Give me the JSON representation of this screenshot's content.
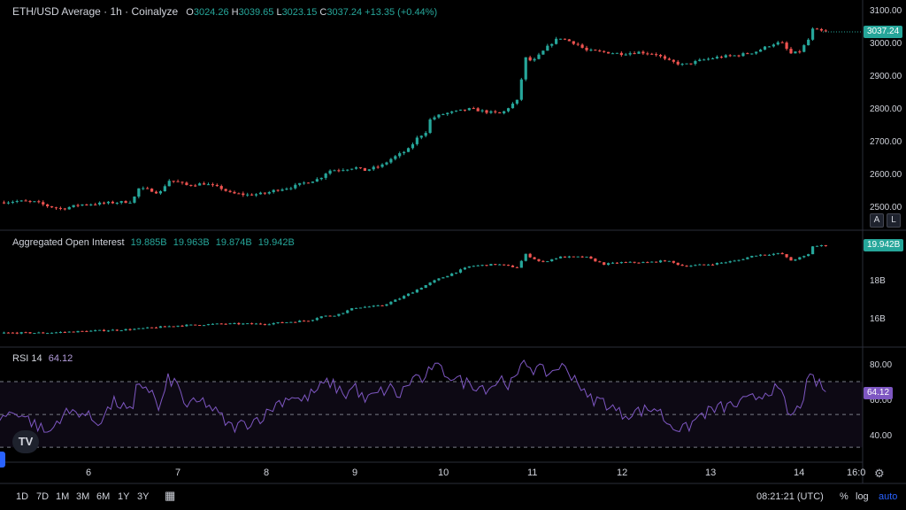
{
  "header": {
    "title": "ETH/USD Average · 1h · Coinalyze",
    "open_key": "O",
    "open": "3024.26",
    "high_key": "H",
    "high": "3039.65",
    "low_key": "L",
    "low": "3023.15",
    "close_key": "C",
    "close": "3037.24",
    "change": "+13.35 (+0.44%)"
  },
  "oi_legend": {
    "title": "Aggregated Open Interest",
    "values": [
      "19.885B",
      "19.963B",
      "19.874B",
      "19.942B"
    ]
  },
  "rsi_legend": {
    "title": "RSI 14",
    "value": "64.12"
  },
  "price_axis": {
    "ticks": [
      "3100.00",
      "3000.00",
      "2900.00",
      "2800.00",
      "2700.00",
      "2600.00",
      "2500.00"
    ],
    "current": "3037.24"
  },
  "oi_axis": {
    "ticks": [
      "18B",
      "16B"
    ],
    "current": "19.942B"
  },
  "rsi_axis": {
    "ticks": [
      "80.00",
      "60.00",
      "40.00"
    ],
    "current": "64.12"
  },
  "time_axis": {
    "ticks": [
      "6",
      "7",
      "8",
      "9",
      "10",
      "11",
      "12",
      "13",
      "14",
      "16:0"
    ]
  },
  "buttons": {
    "auto_scale_a": "A",
    "log_l": "L"
  },
  "timeframes": [
    "1D",
    "7D",
    "1M",
    "3M",
    "6M",
    "1Y",
    "3Y"
  ],
  "clock": "08:21:21 (UTC)",
  "tools": {
    "percent": "%",
    "log": "log",
    "auto": "auto"
  },
  "logo_text": "TV",
  "colors": {
    "up": "#26a69a",
    "down": "#ef5350",
    "rsi": "#7e57c2",
    "accent": "#2962ff"
  },
  "chart_data": [
    {
      "type": "candlestick",
      "series": [
        {
          "name": "ETH/USD Average · 1h · Coinalyze"
        }
      ],
      "ylim": [
        2470,
        3110
      ],
      "xlabel": "",
      "ylabel": "",
      "x_ticks": [
        "6",
        "7",
        "8",
        "9",
        "10",
        "11",
        "12",
        "13",
        "14",
        "16:0"
      ],
      "close_path": [
        [
          5.0,
          2512
        ],
        [
          5.2,
          2516
        ],
        [
          5.4,
          2513
        ],
        [
          5.55,
          2500
        ],
        [
          5.7,
          2492
        ],
        [
          5.9,
          2505
        ],
        [
          6.1,
          2508
        ],
        [
          6.3,
          2512
        ],
        [
          6.5,
          2515
        ],
        [
          6.55,
          2555
        ],
        [
          6.7,
          2550
        ],
        [
          6.8,
          2540
        ],
        [
          6.9,
          2580
        ],
        [
          7.0,
          2575
        ],
        [
          7.1,
          2565
        ],
        [
          7.3,
          2570
        ],
        [
          7.5,
          2555
        ],
        [
          7.6,
          2540
        ],
        [
          7.8,
          2535
        ],
        [
          8.0,
          2540
        ],
        [
          8.1,
          2550
        ],
        [
          8.3,
          2560
        ],
        [
          8.4,
          2570
        ],
        [
          8.6,
          2585
        ],
        [
          8.7,
          2610
        ],
        [
          8.9,
          2615
        ],
        [
          9.0,
          2620
        ],
        [
          9.1,
          2610
        ],
        [
          9.3,
          2625
        ],
        [
          9.4,
          2645
        ],
        [
          9.5,
          2660
        ],
        [
          9.6,
          2675
        ],
        [
          9.7,
          2710
        ],
        [
          9.8,
          2730
        ],
        [
          9.85,
          2770
        ],
        [
          10.0,
          2785
        ],
        [
          10.2,
          2795
        ],
        [
          10.3,
          2800
        ],
        [
          10.5,
          2790
        ],
        [
          10.65,
          2785
        ],
        [
          10.75,
          2810
        ],
        [
          10.85,
          2830
        ],
        [
          10.9,
          2960
        ],
        [
          11.0,
          2945
        ],
        [
          11.2,
          3000
        ],
        [
          11.3,
          3020
        ],
        [
          11.5,
          3000
        ],
        [
          11.6,
          2980
        ],
        [
          11.8,
          2975
        ],
        [
          12.0,
          2970
        ],
        [
          12.2,
          2975
        ],
        [
          12.4,
          2968
        ],
        [
          12.5,
          2950
        ],
        [
          12.7,
          2935
        ],
        [
          12.9,
          2950
        ],
        [
          13.1,
          2960
        ],
        [
          13.3,
          2965
        ],
        [
          13.5,
          2975
        ],
        [
          13.7,
          3000
        ],
        [
          13.8,
          3005
        ],
        [
          13.9,
          2970
        ],
        [
          14.0,
          2975
        ],
        [
          14.1,
          3010
        ],
        [
          14.15,
          3045
        ],
        [
          14.3,
          3037
        ]
      ]
    },
    {
      "type": "bar",
      "series": [
        {
          "name": "Aggregated Open Interest"
        }
      ],
      "ylim": [
        15.0,
        20.5
      ],
      "close_path": [
        [
          5.0,
          15.1
        ],
        [
          5.5,
          15.1
        ],
        [
          6.0,
          15.2
        ],
        [
          6.5,
          15.3
        ],
        [
          7.0,
          15.5
        ],
        [
          7.5,
          15.6
        ],
        [
          8.0,
          15.6
        ],
        [
          8.5,
          15.8
        ],
        [
          8.6,
          16.0
        ],
        [
          8.8,
          16.1
        ],
        [
          9.0,
          16.5
        ],
        [
          9.3,
          16.6
        ],
        [
          9.5,
          17.0
        ],
        [
          9.7,
          17.5
        ],
        [
          9.9,
          18.0
        ],
        [
          10.1,
          18.4
        ],
        [
          10.3,
          18.8
        ],
        [
          10.6,
          18.9
        ],
        [
          10.85,
          18.7
        ],
        [
          10.9,
          19.5
        ],
        [
          11.1,
          19.0
        ],
        [
          11.3,
          19.3
        ],
        [
          11.6,
          19.3
        ],
        [
          11.8,
          18.9
        ],
        [
          12.0,
          19.0
        ],
        [
          12.3,
          19.0
        ],
        [
          12.5,
          19.1
        ],
        [
          12.7,
          18.8
        ],
        [
          13.0,
          18.9
        ],
        [
          13.3,
          19.1
        ],
        [
          13.5,
          19.4
        ],
        [
          13.8,
          19.5
        ],
        [
          13.9,
          19.1
        ],
        [
          14.1,
          19.4
        ],
        [
          14.15,
          19.9
        ],
        [
          14.3,
          19.94
        ]
      ]
    },
    {
      "type": "line",
      "series": [
        {
          "name": "RSI 14"
        }
      ],
      "ylim": [
        25,
        90
      ],
      "bands": [
        70,
        50,
        30
      ],
      "points": [
        [
          5.0,
          48
        ],
        [
          5.2,
          52
        ],
        [
          5.4,
          44
        ],
        [
          5.55,
          38
        ],
        [
          5.7,
          50
        ],
        [
          5.9,
          52
        ],
        [
          6.1,
          45
        ],
        [
          6.3,
          58
        ],
        [
          6.5,
          50
        ],
        [
          6.55,
          70
        ],
        [
          6.7,
          65
        ],
        [
          6.8,
          52
        ],
        [
          6.9,
          72
        ],
        [
          7.0,
          68
        ],
        [
          7.1,
          55
        ],
        [
          7.3,
          58
        ],
        [
          7.5,
          48
        ],
        [
          7.6,
          42
        ],
        [
          7.8,
          45
        ],
        [
          8.0,
          50
        ],
        [
          8.1,
          56
        ],
        [
          8.3,
          62
        ],
        [
          8.4,
          58
        ],
        [
          8.6,
          66
        ],
        [
          8.7,
          70
        ],
        [
          8.9,
          62
        ],
        [
          9.0,
          68
        ],
        [
          9.1,
          58
        ],
        [
          9.3,
          64
        ],
        [
          9.4,
          66
        ],
        [
          9.5,
          61
        ],
        [
          9.6,
          69
        ],
        [
          9.7,
          74
        ],
        [
          9.8,
          69
        ],
        [
          9.85,
          80
        ],
        [
          10.0,
          76
        ],
        [
          10.2,
          70
        ],
        [
          10.3,
          69
        ],
        [
          10.5,
          66
        ],
        [
          10.65,
          72
        ],
        [
          10.75,
          68
        ],
        [
          10.85,
          74
        ],
        [
          10.9,
          84
        ],
        [
          11.0,
          78
        ],
        [
          11.2,
          75
        ],
        [
          11.3,
          80
        ],
        [
          11.5,
          72
        ],
        [
          11.6,
          60
        ],
        [
          11.8,
          58
        ],
        [
          12.0,
          50
        ],
        [
          12.2,
          52
        ],
        [
          12.4,
          54
        ],
        [
          12.5,
          46
        ],
        [
          12.7,
          40
        ],
        [
          12.9,
          50
        ],
        [
          13.1,
          54
        ],
        [
          13.3,
          56
        ],
        [
          13.5,
          60
        ],
        [
          13.7,
          66
        ],
        [
          13.8,
          62
        ],
        [
          13.9,
          48
        ],
        [
          14.0,
          54
        ],
        [
          14.1,
          70
        ],
        [
          14.15,
          72
        ],
        [
          14.3,
          64
        ]
      ]
    }
  ]
}
